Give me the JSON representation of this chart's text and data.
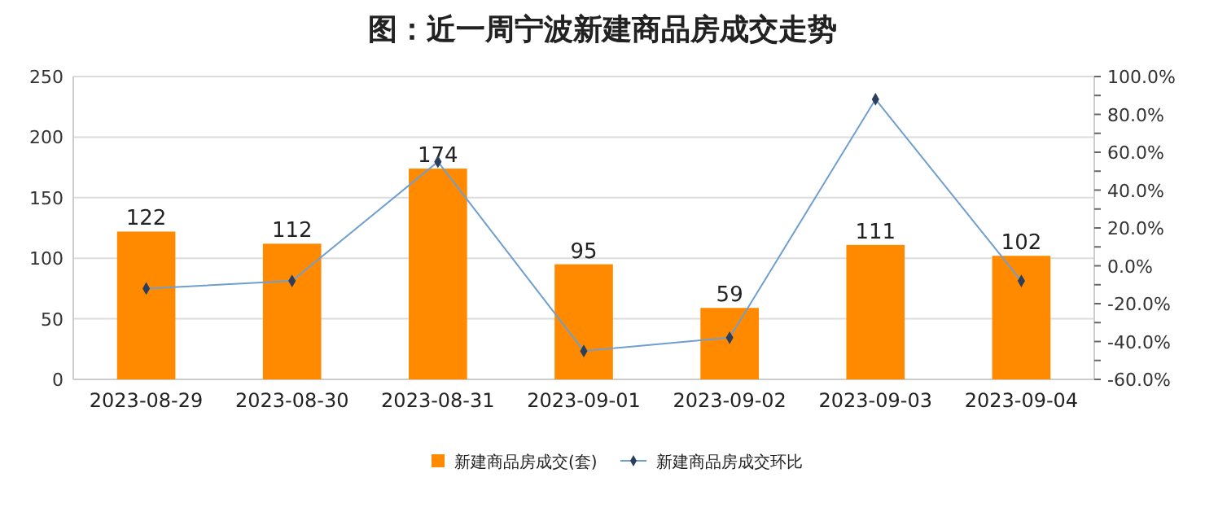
{
  "chart_data": {
    "type": "bar",
    "title": "图：近一周宁波新建商品房成交走势",
    "categories": [
      "2023-08-29",
      "2023-08-30",
      "2023-08-31",
      "2023-09-01",
      "2023-09-02",
      "2023-09-03",
      "2023-09-04"
    ],
    "series": [
      {
        "name": "新建商品房成交(套)",
        "color": "#ff8a00",
        "values": [
          122,
          112,
          174,
          95,
          59,
          111,
          102
        ],
        "value_labels": [
          "122",
          "112",
          "174",
          "95",
          "59",
          "111",
          "102"
        ]
      },
      {
        "name": "新建商品房成交环比",
        "type": "line",
        "axis": "y2",
        "color": "#6f9fd0",
        "values": [
          -12,
          -8,
          55,
          -45,
          -38,
          88,
          -8
        ]
      }
    ],
    "ylim": [
      0,
      250
    ],
    "yticks": [
      0,
      50,
      100,
      150,
      200,
      250
    ],
    "y2lim": [
      -60,
      100
    ],
    "y2ticks": [
      {
        "value": -60,
        "label": "-60.0%"
      },
      {
        "value": -50,
        "label": null
      },
      {
        "value": -40,
        "label": "-40.0%"
      },
      {
        "value": -30,
        "label": null
      },
      {
        "value": -20,
        "label": "-20.0%"
      },
      {
        "value": -10,
        "label": null
      },
      {
        "value": 0,
        "label": "0.0%"
      },
      {
        "value": 10,
        "label": null
      },
      {
        "value": 20,
        "label": "20.0%"
      },
      {
        "value": 30,
        "label": null
      },
      {
        "value": 40,
        "label": "40.0%"
      },
      {
        "value": 50,
        "label": null
      },
      {
        "value": 60,
        "label": "60.0%"
      },
      {
        "value": 70,
        "label": null
      },
      {
        "value": 80,
        "label": "80.0%"
      },
      {
        "value": 90,
        "label": null
      },
      {
        "value": 100,
        "label": "100.0%"
      }
    ],
    "grid": "y",
    "legend": "bottom",
    "marker": "diamond",
    "line_style": "solid"
  }
}
